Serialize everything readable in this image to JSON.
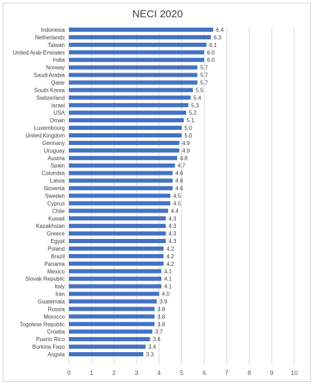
{
  "chart_data": {
    "type": "bar",
    "orientation": "horizontal",
    "title": "NECI 2020",
    "xlabel": "",
    "ylabel": "",
    "xlim": [
      0,
      10
    ],
    "xticks": [
      0,
      1,
      2,
      3,
      4,
      5,
      6,
      7,
      8,
      9,
      10
    ],
    "grid": true,
    "bar_color": "#4472c4",
    "categories": [
      "Indonesia",
      "Netherlands",
      "Taiwan",
      "United Arab Emirates",
      "India",
      "Norway",
      "Saudi Arabia",
      "Qatar",
      "South Korea",
      "Switzerland",
      "Israel",
      "USA",
      "Oman",
      "Luxembourg",
      "United Kingdom",
      "Germany",
      "Uruguay",
      "Austria",
      "Spain",
      "Colombia",
      "Latvia",
      "Slovenia",
      "Sweden",
      "Cyprus",
      "Chile",
      "Kuwait",
      "Kazakhstan",
      "Greece",
      "Egypt",
      "Poland",
      "Brazil",
      "Panama",
      "Mexico",
      "Slovak Republic",
      "Italy",
      "Iran",
      "Guatemala",
      "Russia",
      "Morocco",
      "Togolese Republic",
      "Croatia",
      "Puerto Rico",
      "Burkina Faso",
      "Angola"
    ],
    "values": [
      6.4,
      6.3,
      6.1,
      6.0,
      6.0,
      5.7,
      5.7,
      5.7,
      5.5,
      5.4,
      5.3,
      5.2,
      5.1,
      5.0,
      5.0,
      4.9,
      4.9,
      4.8,
      4.7,
      4.6,
      4.6,
      4.6,
      4.5,
      4.5,
      4.4,
      4.3,
      4.3,
      4.3,
      4.3,
      4.2,
      4.2,
      4.2,
      4.1,
      4.1,
      4.1,
      4.0,
      3.9,
      3.8,
      3.8,
      3.8,
      3.7,
      3.6,
      3.4,
      3.3
    ]
  }
}
